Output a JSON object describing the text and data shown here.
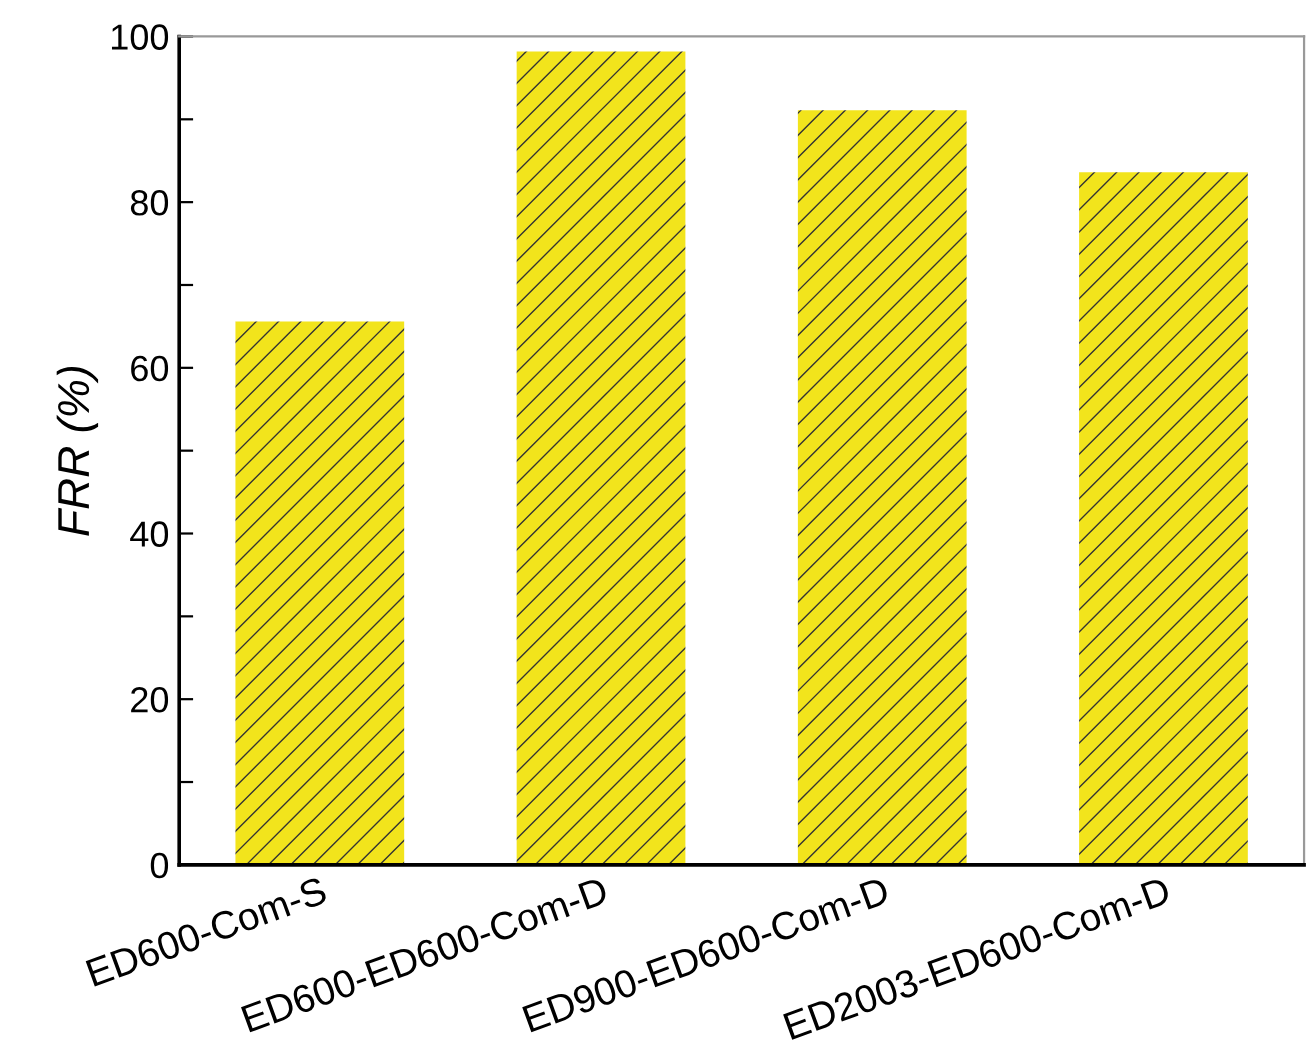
{
  "chart_data": {
    "type": "bar",
    "ylabel": "FRR (%)",
    "categories": [
      "ED600-Com-S",
      "ED600-ED600-Com-D",
      "ED900-ED600-Com-D",
      "ED2003-ED600-Com-D"
    ],
    "values": [
      65.6,
      98.2,
      91.1,
      83.6
    ],
    "color": "#f2e41c",
    "ylim": [
      0,
      100
    ],
    "yticks": [
      0,
      {
        "value": 10,
        "label": null
      },
      20,
      {
        "value": 30,
        "label": null
      },
      40,
      {
        "value": 50,
        "label": null
      },
      60,
      {
        "value": 70,
        "label": null
      },
      80,
      {
        "value": 90,
        "label": null
      },
      100
    ],
    "grid": false,
    "legend": false
  }
}
